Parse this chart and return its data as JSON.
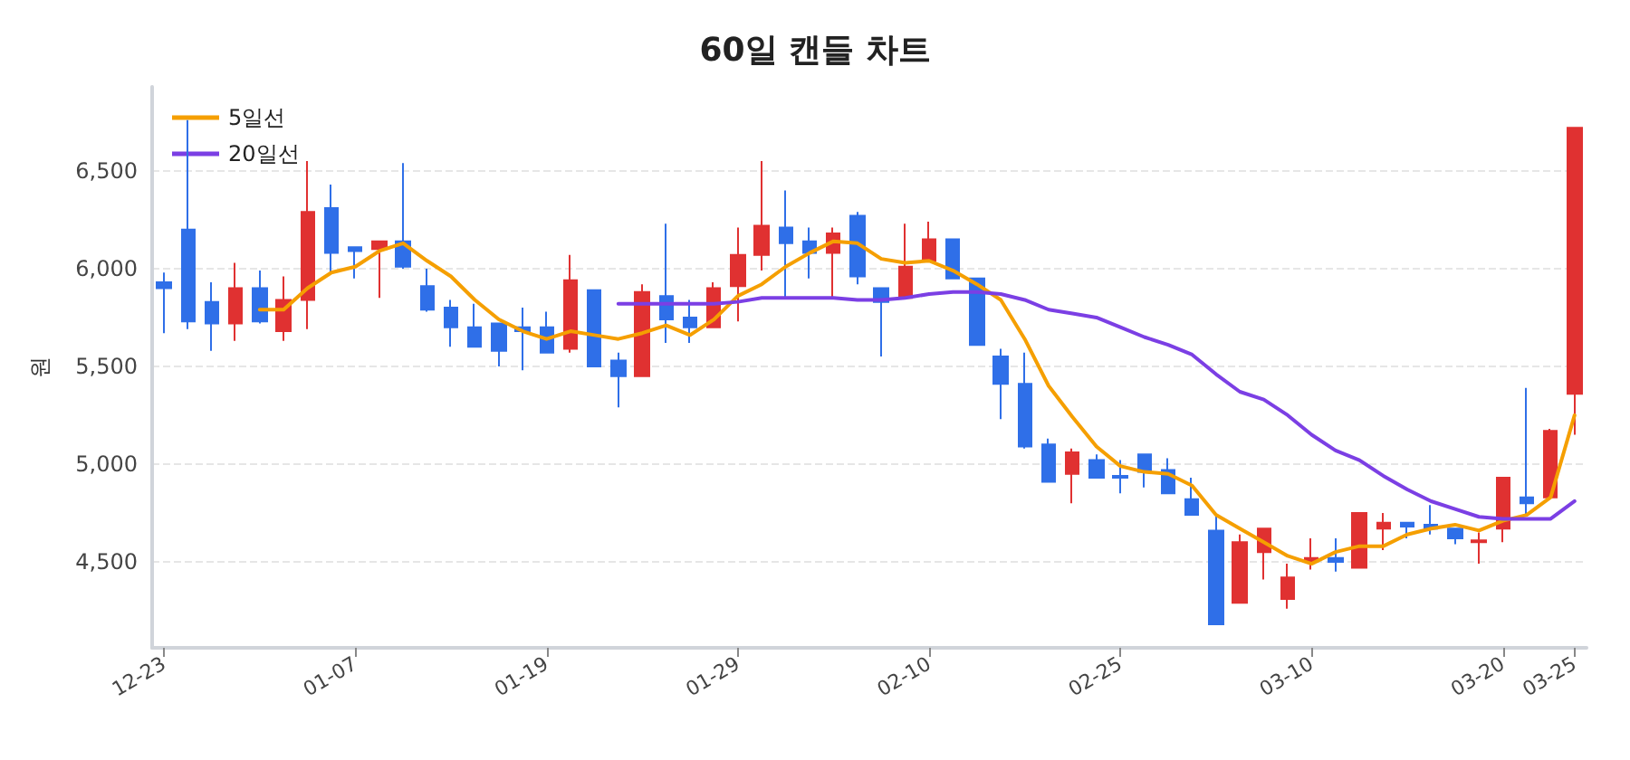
{
  "chart_data": {
    "type": "candlestick",
    "title": "60일 캔들 차트",
    "ylabel": "원",
    "categories": [
      "12-23",
      null,
      null,
      null,
      null,
      null,
      null,
      null,
      "01-07",
      null,
      null,
      null,
      null,
      null,
      null,
      null,
      "01-19",
      null,
      null,
      null,
      null,
      null,
      null,
      null,
      "01-29",
      null,
      null,
      null,
      null,
      null,
      null,
      null,
      "02-10",
      null,
      null,
      null,
      null,
      null,
      null,
      null,
      "02-25",
      null,
      null,
      null,
      null,
      null,
      null,
      null,
      "03-10",
      null,
      null,
      null,
      null,
      null,
      null,
      null,
      "03-20",
      null,
      null,
      "03-25"
    ],
    "ohlc": [
      [
        5930,
        5980,
        5670,
        5900
      ],
      [
        6200,
        6760,
        5690,
        5730
      ],
      [
        5830,
        5930,
        5580,
        5720
      ],
      [
        5720,
        6030,
        5630,
        5900
      ],
      [
        5900,
        5990,
        5720,
        5730
      ],
      [
        5680,
        5960,
        5630,
        5840
      ],
      [
        5840,
        6550,
        5690,
        6290
      ],
      [
        6310,
        6430,
        5980,
        6080
      ],
      [
        6110,
        6110,
        5950,
        6090
      ],
      [
        6100,
        6140,
        5850,
        6140
      ],
      [
        6140,
        6540,
        6000,
        6010
      ],
      [
        5910,
        6000,
        5780,
        5790
      ],
      [
        5800,
        5840,
        5600,
        5700
      ],
      [
        5700,
        5820,
        5600,
        5600
      ],
      [
        5720,
        5720,
        5500,
        5580
      ],
      [
        5700,
        5800,
        5480,
        5680
      ],
      [
        5700,
        5780,
        5570,
        5570
      ],
      [
        5590,
        6070,
        5570,
        5940
      ],
      [
        5890,
        5890,
        5500,
        5500
      ],
      [
        5530,
        5570,
        5290,
        5450
      ],
      [
        5450,
        5920,
        5450,
        5880
      ],
      [
        5860,
        6230,
        5620,
        5740
      ],
      [
        5750,
        5840,
        5620,
        5700
      ],
      [
        5700,
        5930,
        5700,
        5900
      ],
      [
        5910,
        6210,
        5730,
        6070
      ],
      [
        6070,
        6550,
        5990,
        6220
      ],
      [
        6210,
        6400,
        5850,
        6130
      ],
      [
        6140,
        6210,
        5950,
        6080
      ],
      [
        6080,
        6210,
        5850,
        6180
      ],
      [
        6270,
        6290,
        5920,
        5960
      ],
      [
        5900,
        5900,
        5550,
        5830
      ],
      [
        5850,
        6230,
        5850,
        6010
      ],
      [
        6040,
        6240,
        6040,
        6150
      ],
      [
        6150,
        6150,
        5950,
        5950
      ],
      [
        5950,
        5950,
        5610,
        5610
      ],
      [
        5550,
        5590,
        5230,
        5410
      ],
      [
        5410,
        5570,
        5080,
        5090
      ],
      [
        5100,
        5130,
        4910,
        4910
      ],
      [
        4950,
        5080,
        4800,
        5060
      ],
      [
        5020,
        5050,
        4930,
        4930
      ],
      [
        4940,
        5020,
        4850,
        4930
      ],
      [
        5050,
        5050,
        4880,
        4960
      ],
      [
        4970,
        5030,
        4850,
        4850
      ],
      [
        4820,
        4930,
        4740,
        4740
      ],
      [
        4660,
        4740,
        4180,
        4180
      ],
      [
        4290,
        4640,
        4290,
        4600
      ],
      [
        4550,
        4670,
        4410,
        4670
      ],
      [
        4310,
        4490,
        4260,
        4420
      ],
      [
        4500,
        4620,
        4460,
        4520
      ],
      [
        4520,
        4620,
        4450,
        4500
      ],
      [
        4470,
        4750,
        4470,
        4750
      ],
      [
        4670,
        4750,
        4560,
        4700
      ],
      [
        4700,
        4700,
        4620,
        4680
      ],
      [
        4690,
        4790,
        4640,
        4670
      ],
      [
        4670,
        4670,
        4590,
        4620
      ],
      [
        4600,
        4650,
        4490,
        4610
      ],
      [
        4670,
        4930,
        4600,
        4930
      ],
      [
        4830,
        5390,
        4740,
        4800
      ],
      [
        4830,
        5180,
        4830,
        5170
      ],
      [
        5360,
        6720,
        5150,
        6720
      ]
    ],
    "colors": [
      "#2f6fe8",
      "#2f6fe8",
      "#2f6fe8",
      "#e03131",
      "#2f6fe8",
      "#e03131",
      "#e03131",
      "#2f6fe8",
      "#2f6fe8",
      "#e03131",
      "#2f6fe8",
      "#2f6fe8",
      "#2f6fe8",
      "#2f6fe8",
      "#2f6fe8",
      "#2f6fe8",
      "#2f6fe8",
      "#e03131",
      "#2f6fe8",
      "#2f6fe8",
      "#e03131",
      "#2f6fe8",
      "#2f6fe8",
      "#e03131",
      "#e03131",
      "#e03131",
      "#2f6fe8",
      "#2f6fe8",
      "#e03131",
      "#2f6fe8",
      "#2f6fe8",
      "#e03131",
      "#e03131",
      "#2f6fe8",
      "#2f6fe8",
      "#2f6fe8",
      "#2f6fe8",
      "#2f6fe8",
      "#e03131",
      "#2f6fe8",
      "#2f6fe8",
      "#2f6fe8",
      "#2f6fe8",
      "#2f6fe8",
      "#2f6fe8",
      "#e03131",
      "#e03131",
      "#e03131",
      "#e03131",
      "#2f6fe8",
      "#e03131",
      "#e03131",
      "#2f6fe8",
      "#2f6fe8",
      "#2f6fe8",
      "#e03131",
      "#e03131",
      "#2f6fe8",
      "#e03131",
      "#e03131"
    ],
    "series": [
      {
        "type": "line",
        "name": "5일선",
        "color": "#f59f00",
        "values": [
          null,
          null,
          null,
          null,
          5790,
          5790,
          5900,
          5980,
          6010,
          6090,
          6130,
          6040,
          5960,
          5840,
          5740,
          5680,
          5640,
          5680,
          5660,
          5640,
          5670,
          5710,
          5660,
          5740,
          5860,
          5920,
          6010,
          6080,
          6140,
          6130,
          6050,
          6030,
          6040,
          5990,
          5920,
          5840,
          5640,
          5400,
          5240,
          5090,
          4990,
          4960,
          4950,
          4890,
          4740,
          4670,
          4600,
          4530,
          4490,
          4550,
          4580,
          4580,
          4640,
          4670,
          4690,
          4660,
          4710,
          4740,
          4830,
          5250
        ]
      },
      {
        "type": "line",
        "name": "20일선",
        "color": "#7b3fe4",
        "values": [
          null,
          null,
          null,
          null,
          null,
          null,
          null,
          null,
          null,
          null,
          null,
          null,
          null,
          null,
          null,
          null,
          null,
          null,
          null,
          5820,
          5820,
          5820,
          5820,
          5820,
          5830,
          5850,
          5850,
          5850,
          5850,
          5840,
          5840,
          5850,
          5870,
          5880,
          5880,
          5870,
          5840,
          5790,
          5770,
          5750,
          5700,
          5650,
          5610,
          5560,
          5460,
          5370,
          5330,
          5250,
          5150,
          5070,
          5020,
          4940,
          4870,
          4810,
          4770,
          4730,
          4720,
          4720,
          4720,
          4810
        ]
      }
    ],
    "ylim": [
      4060,
      6930
    ],
    "yticks": [
      {
        "value": 4500,
        "label": "4,500"
      },
      {
        "value": 5000,
        "label": "5,000"
      },
      {
        "value": 5500,
        "label": "5,500"
      },
      {
        "value": 6000,
        "label": "6,000"
      },
      {
        "value": 6500,
        "label": "6,500"
      }
    ],
    "grid": "y",
    "legend": "top left",
    "marker": "none",
    "line_style": "solid"
  }
}
